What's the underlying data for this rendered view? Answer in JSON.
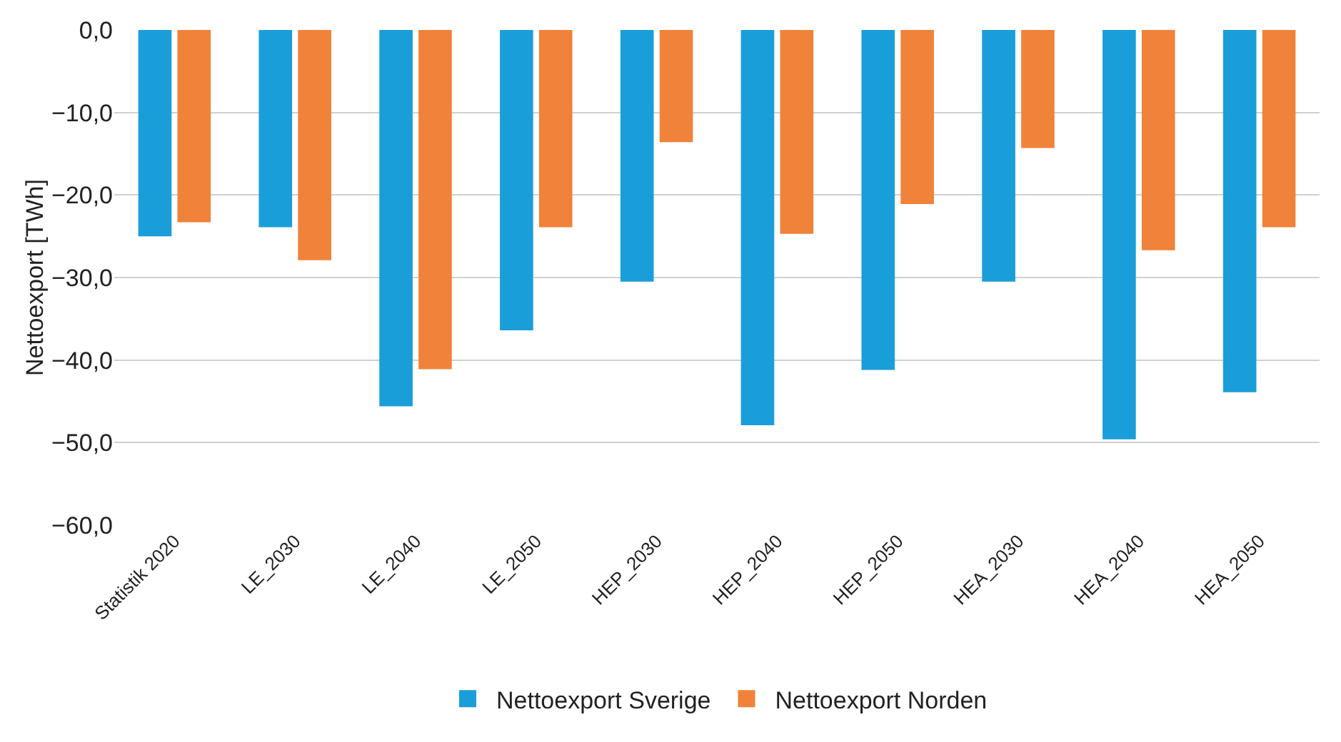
{
  "chart_data": {
    "type": "bar",
    "ylabel": "Nettoexport [TWh]",
    "categories": [
      "Statistik 2020",
      "LE_2030",
      "LE_2040",
      "LE_2050",
      "HEP_2030",
      "HEP_2040",
      "HEP_2050",
      "HEA_2030",
      "HEA_2040",
      "HEA_2050"
    ],
    "series": [
      {
        "name": "Nettoexport Sverige",
        "color": "#1a9ed9",
        "values": [
          -25.0,
          -23.9,
          -45.6,
          -36.4,
          -30.5,
          -47.9,
          -41.2,
          -30.5,
          -49.6,
          -43.9
        ]
      },
      {
        "name": "Nettoexport Norden",
        "color": "#f0823a",
        "values": [
          -23.3,
          -27.9,
          -41.1,
          -23.9,
          -13.6,
          -24.7,
          -21.1,
          -14.3,
          -26.7,
          -23.9
        ]
      }
    ],
    "ylim": [
      -60,
      0
    ],
    "yticks": [
      {
        "value": 0,
        "label": "0,0"
      },
      {
        "value": -10,
        "label": "−10,0"
      },
      {
        "value": -20,
        "label": "−20,0"
      },
      {
        "value": -30,
        "label": "−30,0"
      },
      {
        "value": -40,
        "label": "−40,0"
      },
      {
        "value": -50,
        "label": "−50,0"
      },
      {
        "value": -60,
        "label": "−60,0"
      }
    ],
    "grid": "y",
    "legend": "bottom"
  }
}
